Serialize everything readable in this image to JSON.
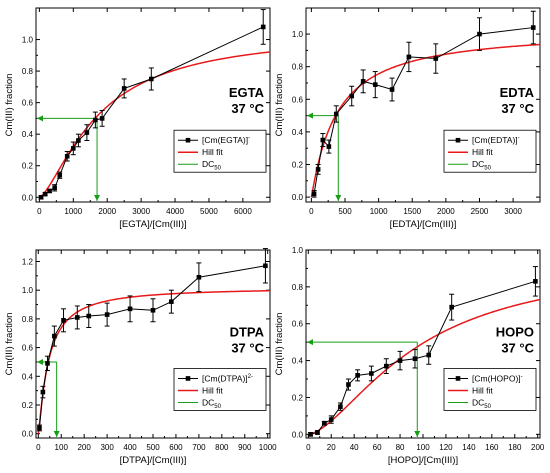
{
  "colors": {
    "data": "#000000",
    "fit": "#e8191a",
    "dc50": "#169e16",
    "axis": "#000000"
  },
  "chart_data": [
    {
      "type": "scatter",
      "xlabel": "[EGTA]/[Cm(III)]",
      "ylabel": "Cm(III) fraction",
      "xlim": [
        -100,
        6800
      ],
      "ylim": [
        -0.03,
        1.2
      ],
      "xticks": [
        0,
        1000,
        2000,
        3000,
        4000,
        5000,
        6000
      ],
      "yticks": [
        0.0,
        0.2,
        0.4,
        0.6,
        0.8,
        1.0
      ],
      "ytick_labels": [
        "0.0",
        "0.2",
        "0.4",
        "0.6",
        "0.8",
        "1.0"
      ],
      "annotation": {
        "name": "EGTA",
        "temp": "37 °C"
      },
      "legend": {
        "position": "right",
        "data_main": "[Cm(EGTA)]",
        "data_sup": "-",
        "fit": "Hill fit",
        "dc_main": "DC",
        "dc_sub": "50"
      },
      "series": [
        {
          "x": [
            50,
            170,
            300,
            450,
            600,
            820,
            1000,
            1150,
            1400,
            1650,
            1850,
            2500,
            3300,
            6600
          ],
          "y": [
            0.0,
            0.02,
            0.04,
            0.06,
            0.14,
            0.26,
            0.31,
            0.36,
            0.41,
            0.49,
            0.5,
            0.69,
            0.75,
            1.08
          ],
          "err": [
            0.01,
            0.01,
            0.01,
            0.02,
            0.02,
            0.03,
            0.04,
            0.04,
            0.05,
            0.05,
            0.05,
            0.06,
            0.07,
            0.11
          ]
        }
      ],
      "fit": {
        "type": "hill",
        "ymax": 1.05,
        "k": 1750,
        "n": 1.45
      },
      "dc50": {
        "x": 1700,
        "y": 0.5
      }
    },
    {
      "type": "scatter",
      "xlabel": "[EDTA]/[Cm(III)]",
      "ylabel": "Cm(III) fraction",
      "xlim": [
        -80,
        3400
      ],
      "ylim": [
        -0.03,
        1.16
      ],
      "xticks": [
        0,
        500,
        1000,
        1500,
        2000,
        2500,
        3000
      ],
      "yticks": [
        0.0,
        0.2,
        0.4,
        0.6,
        0.8,
        1.0
      ],
      "ytick_labels": [
        "0.0",
        "0.2",
        "0.4",
        "0.6",
        "0.8",
        "1.0"
      ],
      "annotation": {
        "name": "EDTA",
        "temp": "37 °C"
      },
      "legend": {
        "position": "right",
        "data_main": "[Cm(EDTA)]",
        "data_sup": "-",
        "fit": "Hill fit",
        "dc_main": "DC",
        "dc_sub": "50"
      },
      "series": [
        {
          "x": [
            40,
            100,
            170,
            260,
            370,
            600,
            770,
            950,
            1200,
            1450,
            1850,
            2500,
            3300
          ],
          "y": [
            0.02,
            0.17,
            0.35,
            0.31,
            0.51,
            0.62,
            0.71,
            0.69,
            0.66,
            0.86,
            0.85,
            1.0,
            1.04
          ],
          "err": [
            0.02,
            0.03,
            0.04,
            0.04,
            0.05,
            0.06,
            0.07,
            0.08,
            0.07,
            0.09,
            0.09,
            0.1,
            0.1
          ]
        }
      ],
      "fit": {
        "type": "hill",
        "ymax": 1.03,
        "k": 380,
        "n": 1.05
      },
      "dc50": {
        "x": 400,
        "y": 0.5
      }
    },
    {
      "type": "scatter",
      "xlabel": "[DTPA]/[Cm(III)]",
      "ylabel": "Cm(III) fraction",
      "xlim": [
        -10,
        1010
      ],
      "ylim": [
        -0.03,
        1.28
      ],
      "xticks": [
        0,
        100,
        200,
        300,
        400,
        500,
        600,
        700,
        800,
        900,
        1000
      ],
      "yticks": [
        0.0,
        0.2,
        0.4,
        0.6,
        0.8,
        1.0,
        1.2
      ],
      "ytick_labels": [
        "0.0",
        "0.2",
        "0.4",
        "0.6",
        "0.8",
        "1.0",
        "1.2"
      ],
      "annotation": {
        "name": "DTPA",
        "temp": "37 °C"
      },
      "legend": {
        "position": "right",
        "data_main": "[Cm(DTPA)]",
        "data_sup": "2-",
        "fit": "Hill fit",
        "dc_main": "DC",
        "dc_sub": "50"
      },
      "series": [
        {
          "x": [
            5,
            20,
            40,
            70,
            110,
            170,
            220,
            300,
            400,
            500,
            580,
            700,
            990
          ],
          "y": [
            0.04,
            0.29,
            0.49,
            0.68,
            0.79,
            0.81,
            0.82,
            0.83,
            0.87,
            0.86,
            0.92,
            1.09,
            1.17
          ],
          "err": [
            0.02,
            0.04,
            0.05,
            0.07,
            0.08,
            0.08,
            0.08,
            0.08,
            0.09,
            0.08,
            0.08,
            0.1,
            0.12
          ]
        }
      ],
      "fit": {
        "type": "hill",
        "ymax": 1.02,
        "k": 45,
        "n": 1.2
      },
      "dc50": {
        "x": 80,
        "y": 0.5
      }
    },
    {
      "type": "scatter",
      "xlabel": "[HOPO]/[Cm(III)]",
      "ylabel": "Cm(III) fraction",
      "xlim": [
        -2,
        202
      ],
      "ylim": [
        -0.02,
        1.0
      ],
      "xticks": [
        0,
        20,
        40,
        60,
        80,
        100,
        120,
        140,
        160,
        180,
        200
      ],
      "yticks": [
        0.0,
        0.2,
        0.4,
        0.6,
        0.8,
        1.0
      ],
      "ytick_labels": [
        "0.0",
        "0.2",
        "0.4",
        "0.6",
        "0.8",
        "1.0"
      ],
      "annotation": {
        "name": "HOPO",
        "temp": "37 °C"
      },
      "legend": {
        "position": "right",
        "data_main": "[Cm(HOPO)]",
        "data_sup": "-",
        "fit": "Hill fit",
        "dc_main": "DC",
        "dc_sub": "50"
      },
      "series": [
        {
          "x": [
            2,
            8,
            14,
            20,
            28,
            35,
            43,
            55,
            68,
            80,
            93,
            105,
            125,
            198
          ],
          "y": [
            0.0,
            0.01,
            0.06,
            0.08,
            0.15,
            0.27,
            0.32,
            0.33,
            0.37,
            0.4,
            0.41,
            0.43,
            0.69,
            0.83
          ],
          "err": [
            0.01,
            0.01,
            0.01,
            0.02,
            0.02,
            0.03,
            0.03,
            0.04,
            0.04,
            0.05,
            0.05,
            0.05,
            0.07,
            0.08
          ]
        }
      ],
      "fit": {
        "type": "hill",
        "ymax": 0.95,
        "k": 95,
        "n": 1.6
      },
      "dc50": {
        "x": 95,
        "y": 0.5
      }
    }
  ]
}
